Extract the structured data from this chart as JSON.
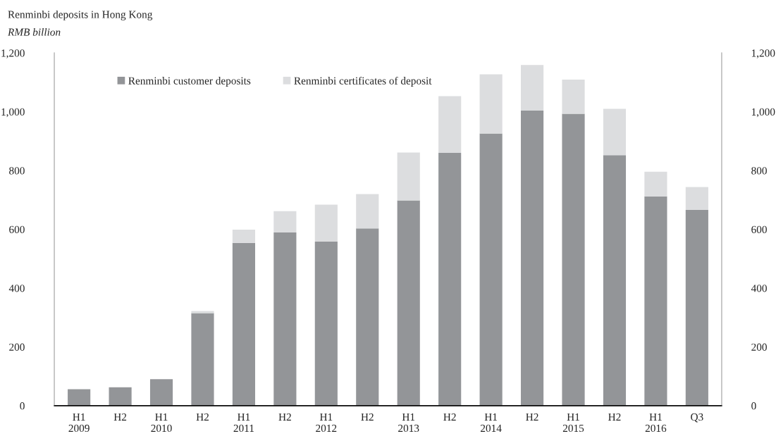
{
  "chart_data": {
    "type": "bar",
    "title": "Renminbi deposits in Hong Kong",
    "subtitle": "RMB billion",
    "categories": [
      "H1\n2009",
      "H2",
      "H1\n2010",
      "H2",
      "H1\n2011",
      "H2",
      "H1\n2012",
      "H2",
      "H1\n2013",
      "H2",
      "H1\n2014",
      "H2",
      "H1\n2015",
      "H2",
      "H1\n2016",
      "Q3"
    ],
    "stacked": true,
    "series": [
      {
        "name": "Renminbi customer deposits",
        "color": "#939598",
        "values": [
          56,
          63,
          90,
          315,
          554,
          589,
          558,
          603,
          698,
          860,
          926,
          1004,
          993,
          852,
          712,
          666
        ]
      },
      {
        "name": "Renminbi certificates of deposit",
        "color": "#dcdddf",
        "values": [
          null,
          null,
          null,
          7,
          45,
          73,
          126,
          117,
          163,
          193,
          201,
          155,
          116,
          158,
          84,
          78
        ]
      }
    ],
    "ylim": [
      0,
      1200
    ],
    "yticks": [
      0,
      200,
      400,
      600,
      800,
      {
        "value": 1000,
        "label": "1,000"
      },
      {
        "value": 1200,
        "label": "1,200"
      }
    ],
    "y2lim": [
      0,
      1200
    ],
    "y2ticks": [
      0,
      200,
      400,
      600,
      800,
      {
        "value": 1000,
        "label": "1,000"
      },
      {
        "value": 1200,
        "label": "1,200"
      }
    ],
    "grid": false,
    "legend": "top"
  }
}
